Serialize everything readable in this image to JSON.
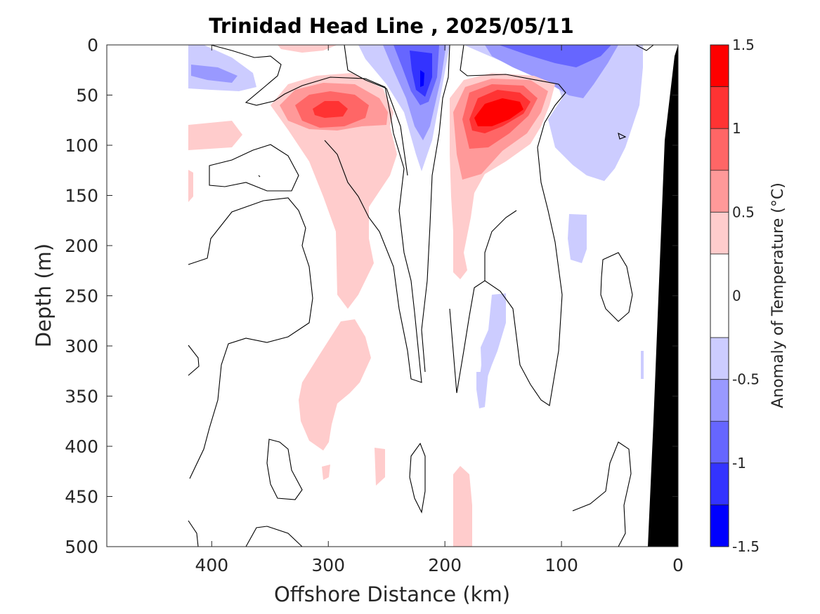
{
  "chart_data": {
    "type": "heatmap",
    "title": "Trinidad Head Line , 2025/05/11",
    "xlabel": "Offshore Distance (km)",
    "ylabel": "Depth (m)",
    "xlim": [
      490,
      0
    ],
    "ylim": [
      0,
      500
    ],
    "x_reversed": true,
    "y_reversed": true,
    "x_ticks": [
      400,
      300,
      200,
      100,
      0
    ],
    "y_ticks": [
      0,
      50,
      100,
      150,
      200,
      250,
      300,
      350,
      400,
      450,
      500
    ],
    "data_x_extent": [
      420,
      0
    ],
    "colorbar": {
      "label": "Anomaly of Temperature (°C)",
      "range": [
        -1.5,
        1.5
      ],
      "ticks": [
        1.5,
        1,
        0.5,
        0,
        -0.5,
        -1,
        -1.5
      ],
      "tick_labels": [
        "1.5",
        "1",
        "0.5",
        "0",
        "-0.5",
        "-1",
        "-1.5"
      ],
      "levels": [
        -1.5,
        -1.25,
        -1,
        -0.75,
        -0.5,
        -0.25,
        0.25,
        0.5,
        0.75,
        1,
        1.25,
        1.5
      ],
      "colors": [
        "#0000ff",
        "#3333ff",
        "#6666ff",
        "#9999ff",
        "#ccccff",
        "#ffffff",
        "#ffcccc",
        "#ff9999",
        "#ff6666",
        "#ff3333",
        "#ff0000"
      ]
    },
    "regions": [
      {
        "name": "warm-core-offshore",
        "center_km": 300,
        "center_depth_m": 65,
        "peak_anomaly": 1.25
      },
      {
        "name": "warm-core-midshelf",
        "center_km": 155,
        "center_depth_m": 65,
        "peak_anomaly": 1.3
      },
      {
        "name": "cold-core-surface",
        "center_km": 220,
        "center_depth_m": 35,
        "peak_anomaly": -1.25
      },
      {
        "name": "cold-surface-nearshore",
        "center_km": 90,
        "center_depth_m": 10,
        "peak_anomaly": -1.0
      }
    ],
    "bathymetry_color": "#000000"
  }
}
